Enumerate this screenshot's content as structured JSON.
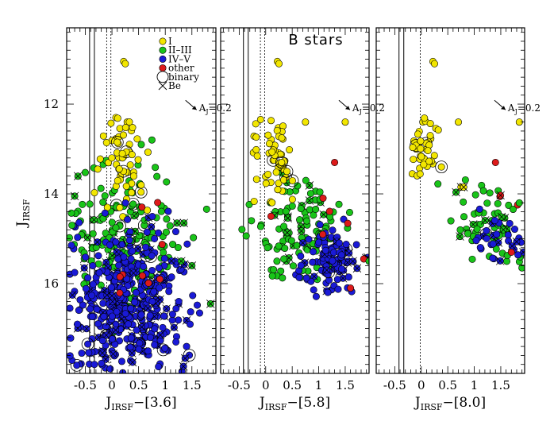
{
  "chart_data": {
    "type": "scatter",
    "title": "B stars",
    "ylabel": "J",
    "ylabel_sub": "IRSF",
    "ylim": [
      18.0,
      10.3
    ],
    "yticks": [
      12,
      14,
      16
    ],
    "xlim": [
      -0.85,
      1.95
    ],
    "xticks": [
      -0.5,
      0,
      0.5,
      1,
      1.5
    ],
    "xticklabels": [
      "-0.5",
      "0",
      "0.5",
      "1",
      "1.5"
    ],
    "colors": {
      "I": "#f2e600",
      "II-III": "#19c419",
      "IV-V": "#1a1ad6",
      "other": "#dd1a1a"
    },
    "legend": [
      {
        "key": "I",
        "label": "I",
        "symbol": "filled-circle",
        "color": "#f2e600"
      },
      {
        "key": "II-III",
        "label": "II–III",
        "symbol": "filled-circle",
        "color": "#19c419"
      },
      {
        "key": "IV-V",
        "label": "IV–V",
        "symbol": "filled-circle",
        "color": "#1a1ad6"
      },
      {
        "key": "other",
        "label": "other",
        "symbol": "filled-circle",
        "color": "#dd1a1a"
      },
      {
        "key": "binary",
        "label": "binary",
        "symbol": "open-circle"
      },
      {
        "key": "Be",
        "label": "Be",
        "symbol": "cross"
      }
    ],
    "reddening_vector": {
      "label_main": "A",
      "label_sub": "J",
      "label_rest": "=0.2",
      "from": [
        1.35,
        12.0
      ],
      "to": [
        1.55,
        12.3
      ]
    },
    "panels": [
      {
        "xlabel_main": "J",
        "xlabel_sub": "IRSF",
        "xlabel_rest": "−[3.6]",
        "show_title": false,
        "show_legend": true,
        "show_ylabels": true,
        "vlines_solid": [
          -0.42,
          -0.33
        ],
        "vlines_dashed": [
          -0.1,
          -0.02
        ],
        "clusters": [
          {
            "cls": "I",
            "n": 55,
            "xc": 0.15,
            "xs": 0.22,
            "yc": 13.2,
            "ys": 0.65,
            "ymin": 12.2,
            "ymax": 14.7
          },
          {
            "cls": "II-III",
            "n": 160,
            "xc": 0.25,
            "xs": 0.55,
            "yc": 15.0,
            "ys": 0.9,
            "ymin": 12.6,
            "ymax": 17.6
          },
          {
            "cls": "IV-V",
            "n": 420,
            "xc": 0.25,
            "xs": 0.55,
            "yc": 16.4,
            "ys": 0.8,
            "ymin": 14.2,
            "ymax": 18.0
          },
          {
            "cls": "other",
            "n": 6,
            "xc": 0.4,
            "xs": 0.4,
            "yc": 15.0,
            "ys": 1.0,
            "ymin": 13.0,
            "ymax": 17.0
          }
        ],
        "points": [
          {
            "x": 0.22,
            "y": 11.05,
            "c": "I"
          },
          {
            "x": 0.25,
            "y": 11.1,
            "c": "I"
          },
          {
            "x": 0.75,
            "y": 12.8,
            "c": "II-III"
          },
          {
            "x": 0.55,
            "y": 12.9,
            "c": "II-III"
          },
          {
            "x": -0.7,
            "y": 14.05,
            "c": "II-III",
            "be": true
          },
          {
            "x": -0.75,
            "y": 14.7,
            "c": "II-III"
          },
          {
            "x": 1.3,
            "y": 15.5,
            "c": "II-III",
            "be": true
          },
          {
            "x": 1.5,
            "y": 15.6,
            "c": "II-III",
            "be": true
          },
          {
            "x": 1.85,
            "y": 16.45,
            "c": "II-III",
            "be": true
          },
          {
            "x": 1.22,
            "y": 14.65,
            "c": "II-III",
            "be": true
          },
          {
            "x": 1.35,
            "y": 14.65,
            "c": "II-III",
            "be": true
          },
          {
            "x": 0.1,
            "y": 12.85,
            "c": "I",
            "bin": true
          },
          {
            "x": 0.2,
            "y": 15.8,
            "c": "other"
          },
          {
            "x": 0.15,
            "y": 15.85,
            "c": "other"
          },
          {
            "x": 0.9,
            "y": 15.9,
            "c": "other"
          },
          {
            "x": 1.2,
            "y": 17.3,
            "c": "IV-V"
          },
          {
            "x": 1.4,
            "y": 17.4,
            "c": "IV-V"
          }
        ]
      },
      {
        "xlabel_main": "J",
        "xlabel_sub": "IRSF",
        "xlabel_rest": "−[5.8]",
        "show_title": true,
        "show_legend": false,
        "show_ylabels": false,
        "vlines_solid": [
          -0.42,
          -0.33
        ],
        "vlines_dashed": [
          -0.1,
          -0.02
        ],
        "clusters": [
          {
            "cls": "I",
            "n": 55,
            "xc": 0.15,
            "xs": 0.18,
            "yc": 13.2,
            "ys": 0.6,
            "ymin": 12.3,
            "ymax": 14.3
          },
          {
            "cls": "II-III",
            "n": 110,
            "xc": 0.65,
            "xs": 0.45,
            "yc": 14.9,
            "ys": 0.6,
            "ymin": 13.3,
            "ymax": 16.2
          },
          {
            "cls": "IV-V",
            "n": 110,
            "xc": 1.25,
            "xs": 0.28,
            "yc": 15.5,
            "ys": 0.35,
            "ymin": 14.4,
            "ymax": 16.3
          },
          {
            "cls": "other",
            "n": 4,
            "xc": 1.2,
            "xs": 0.3,
            "yc": 15.0,
            "ys": 0.7,
            "ymin": 13.2,
            "ymax": 16.1
          }
        ],
        "points": [
          {
            "x": 0.22,
            "y": 11.05,
            "c": "I"
          },
          {
            "x": 0.25,
            "y": 11.1,
            "c": "I"
          },
          {
            "x": 0.75,
            "y": 12.4,
            "c": "I"
          },
          {
            "x": 1.5,
            "y": 12.4,
            "c": "I"
          },
          {
            "x": 0.3,
            "y": 13.3,
            "c": "I",
            "bin": true
          },
          {
            "x": 0.4,
            "y": 13.5,
            "c": "I",
            "bin": true
          },
          {
            "x": 1.3,
            "y": 13.3,
            "c": "other"
          },
          {
            "x": 1.85,
            "y": 15.45,
            "c": "other"
          },
          {
            "x": 1.6,
            "y": 16.1,
            "c": "other"
          },
          {
            "x": 0.1,
            "y": 14.5,
            "c": "other"
          },
          {
            "x": 1.95,
            "y": 15.5,
            "c": "II-III"
          }
        ]
      },
      {
        "xlabel_main": "J",
        "xlabel_sub": "IRSF",
        "xlabel_rest": "−[8.0]",
        "show_title": false,
        "show_legend": false,
        "show_ylabels": false,
        "vlines_solid": [
          -0.42,
          -0.33
        ],
        "vlines_dashed": [
          -0.02
        ],
        "clusters": [
          {
            "cls": "I",
            "n": 40,
            "xc": 0.05,
            "xs": 0.15,
            "yc": 13.0,
            "ys": 0.4,
            "ymin": 12.2,
            "ymax": 13.6
          },
          {
            "cls": "II-III",
            "n": 60,
            "xc": 1.35,
            "xs": 0.35,
            "yc": 14.7,
            "ys": 0.5,
            "ymin": 13.4,
            "ymax": 15.8
          },
          {
            "cls": "IV-V",
            "n": 30,
            "xc": 1.5,
            "xs": 0.25,
            "yc": 15.0,
            "ys": 0.3,
            "ymin": 14.3,
            "ymax": 15.6
          },
          {
            "cls": "other",
            "n": 3,
            "xc": 1.55,
            "xs": 0.2,
            "yc": 14.5,
            "ys": 0.6,
            "ymin": 13.3,
            "ymax": 15.4
          }
        ],
        "points": [
          {
            "x": 0.22,
            "y": 11.05,
            "c": "I"
          },
          {
            "x": 0.25,
            "y": 11.1,
            "c": "I"
          },
          {
            "x": 0.7,
            "y": 12.4,
            "c": "I"
          },
          {
            "x": 1.85,
            "y": 12.4,
            "c": "I"
          },
          {
            "x": 0.38,
            "y": 13.4,
            "c": "I",
            "bin": true
          },
          {
            "x": 0.75,
            "y": 13.85,
            "c": "I",
            "be": true
          },
          {
            "x": 0.8,
            "y": 13.85,
            "c": "I",
            "be": true
          },
          {
            "x": 1.4,
            "y": 13.3,
            "c": "other"
          },
          {
            "x": 1.7,
            "y": 15.3,
            "c": "other"
          },
          {
            "x": 1.9,
            "y": 15.65,
            "c": "II-III"
          },
          {
            "x": 1.85,
            "y": 14.2,
            "c": "II-III"
          }
        ]
      }
    ]
  }
}
